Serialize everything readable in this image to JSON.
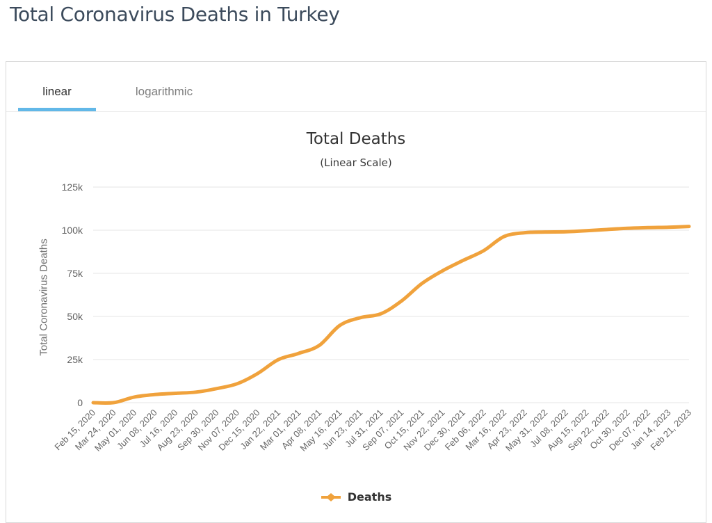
{
  "page": {
    "title": "Total Coronavirus Deaths in Turkey"
  },
  "tabs": [
    {
      "label": "linear",
      "active": true
    },
    {
      "label": "logarithmic",
      "active": false
    }
  ],
  "colors": {
    "accent_blue": "#62B8E8",
    "series_orange": "#F0A23C",
    "grid_line": "#E6E6E6",
    "card_border": "#D9D9D9",
    "title_text": "#3C4B5C",
    "y_axis_text": "#606060",
    "x_axis_text": "#666666"
  },
  "chart_data": {
    "type": "line",
    "title": "Total Deaths",
    "subtitle": "(Linear Scale)",
    "xlabel": "",
    "ylabel": "Total Coronavirus Deaths",
    "ylim": [
      0,
      125000
    ],
    "yticks": [
      0,
      25000,
      50000,
      75000,
      100000,
      125000
    ],
    "ytick_labels": [
      "0",
      "25k",
      "50k",
      "75k",
      "100k",
      "125k"
    ],
    "grid": true,
    "legend_position": "bottom",
    "categories": [
      "Feb 15, 2020",
      "Mar 24, 2020",
      "May 01, 2020",
      "Jun 08, 2020",
      "Jul 16, 2020",
      "Aug 23, 2020",
      "Sep 30, 2020",
      "Nov 07, 2020",
      "Dec 15, 2020",
      "Jan 22, 2021",
      "Mar 01, 2021",
      "Apr 08, 2021",
      "May 16, 2021",
      "Jun 23, 2021",
      "Jul 31, 2021",
      "Sep 07, 2021",
      "Oct 15, 2021",
      "Nov 22, 2021",
      "Dec 30, 2021",
      "Feb 06, 2022",
      "Mar 16, 2022",
      "Apr 23, 2022",
      "May 31, 2022",
      "Jul 08, 2022",
      "Aug 15, 2022",
      "Sep 22, 2022",
      "Oct 30, 2022",
      "Dec 07, 2022",
      "Jan 14, 2023",
      "Feb 21, 2023"
    ],
    "series": [
      {
        "name": "Deaths",
        "color": "#F0A23C",
        "values": [
          0,
          44,
          3258,
          4711,
          5440,
          6139,
          8130,
          10972,
          16881,
          24933,
          28569,
          33201,
          44760,
          49293,
          51519,
          58913,
          69112,
          76446,
          82464,
          88119,
          96318,
          98554,
          98965,
          99057,
          99678,
          100400,
          101090,
          101492,
          101746,
          102174
        ]
      }
    ]
  }
}
